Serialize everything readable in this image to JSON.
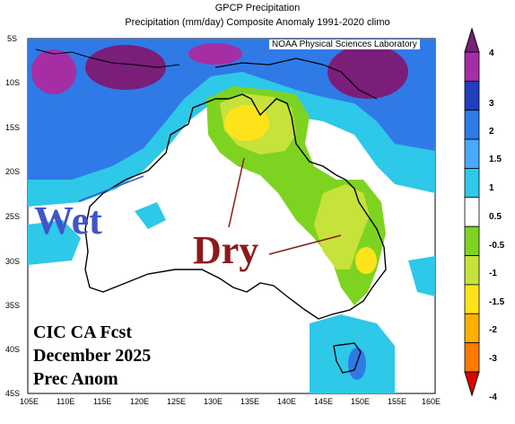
{
  "title": "GPCP Precipitation",
  "subtitle": "Precipitation (mm/day) Composite Anomaly 1991-2020 climo",
  "credit": "NOAA Physical Sciences Laboratory",
  "annotations": {
    "wet": "Wet",
    "dry": "Dry",
    "line1": "CIC CA Fcst",
    "line2": "December 2025",
    "line3": "Prec Anom"
  },
  "axes": {
    "lat_labels": [
      "5S",
      "10S",
      "15S",
      "20S",
      "25S",
      "30S",
      "35S",
      "40S",
      "45S"
    ],
    "lon_labels": [
      "105E",
      "110E",
      "115E",
      "120E",
      "125E",
      "130E",
      "135E",
      "140E",
      "145E",
      "150E",
      "155E",
      "160E"
    ]
  },
  "colorbar": {
    "labels": [
      "4",
      "3",
      "2",
      "1.5",
      "1",
      "0.5",
      "-0.5",
      "-1",
      "-1.5",
      "-2",
      "-3",
      "-4"
    ],
    "colors": [
      "#7a1e7a",
      "#a52ea5",
      "#1f3fbf",
      "#2f7ae6",
      "#4aa8ff",
      "#2ec8e8",
      "#ffffff",
      "#7ed321",
      "#c6e23b",
      "#ffe31a",
      "#ffb000",
      "#ff7a00",
      "#e00000"
    ]
  },
  "colors": {
    "purple": "#a52ea5",
    "blue": "#2f7ae6",
    "cyan": "#2ec8e8",
    "light_green": "#7ed321",
    "yellow_green": "#c6e23b",
    "yellow": "#ffe31a",
    "wet_text": "#3f55c9",
    "dry_text": "#8b1a1a"
  }
}
